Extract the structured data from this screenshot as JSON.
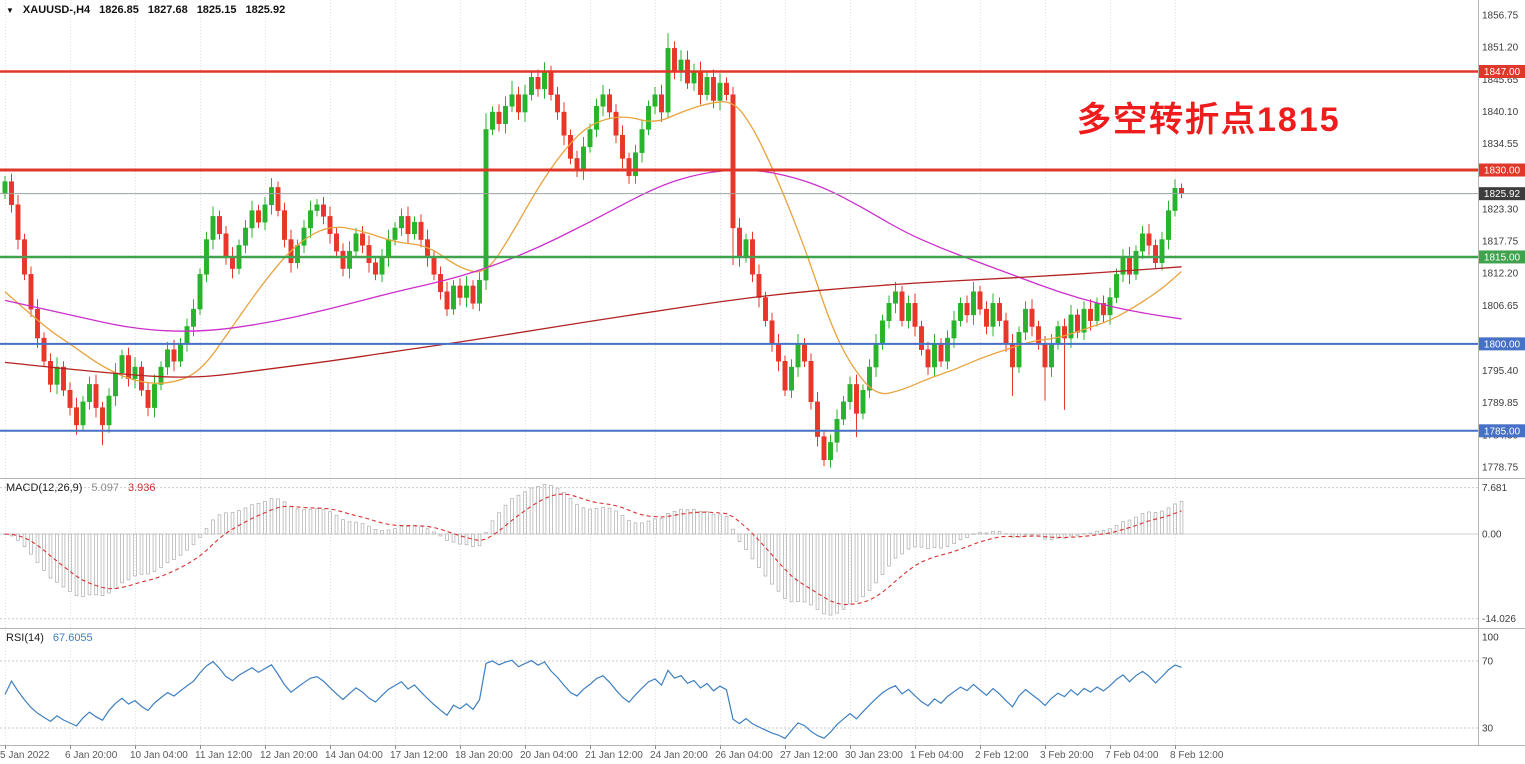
{
  "header": {
    "symbol_period": "XAUUSD-,H4",
    "open": "1826.85",
    "high": "1827.68",
    "low": "1825.15",
    "close": "1825.92"
  },
  "annotation": {
    "text": "多空转折点1815",
    "color": "#ee1c1c"
  },
  "indicators": {
    "macd": {
      "label": "MACD(12,26,9)",
      "value_main": "5.097",
      "value_signal": "3.936",
      "params": [
        12,
        26,
        9
      ],
      "axis": [
        {
          "text": "7.681",
          "value": 7.681
        },
        {
          "text": "0.00",
          "value": 0
        },
        {
          "text": "-14.026",
          "value": -14.026
        }
      ]
    },
    "rsi": {
      "label": "RSI(14)",
      "value": "67.6055",
      "period": 14,
      "axis": [
        {
          "text": "100",
          "value": 100
        },
        {
          "text": "70",
          "value": 70
        },
        {
          "text": "30",
          "value": 30
        }
      ],
      "guide_levels": [
        70,
        30
      ]
    }
  },
  "chart_data": {
    "type": "candlestick",
    "symbol": "XAUUSD-",
    "timeframe": "H4",
    "price_axis_labels": [
      {
        "text": "1856.75",
        "value": 1856.75
      },
      {
        "text": "1851.20",
        "value": 1851.2
      },
      {
        "text": "1845.65",
        "value": 1845.65
      },
      {
        "text": "1840.10",
        "value": 1840.1
      },
      {
        "text": "1834.55",
        "value": 1834.55
      },
      {
        "text": "1823.30",
        "value": 1823.3
      },
      {
        "text": "1817.75",
        "value": 1817.75
      },
      {
        "text": "1812.20",
        "value": 1812.2
      },
      {
        "text": "1806.65",
        "value": 1806.65
      },
      {
        "text": "1795.40",
        "value": 1795.4
      },
      {
        "text": "1789.85",
        "value": 1789.85
      },
      {
        "text": "1784.30",
        "value": 1784.3
      },
      {
        "text": "1778.75",
        "value": 1778.75
      }
    ],
    "levels": [
      {
        "value": 1847.0,
        "label": "1847.00",
        "color": "#e0372b",
        "line_width": 2.5
      },
      {
        "value": 1830.0,
        "label": "1830.00",
        "color": "#e0372b",
        "line_width": 3
      },
      {
        "value": 1815.0,
        "label": "1815.00",
        "color": "#3fa34d",
        "line_width": 2.5
      },
      {
        "value": 1800.0,
        "label": "1800.00",
        "color": "#4671c6",
        "line_width": 2
      },
      {
        "value": 1785.0,
        "label": "1785.00",
        "color": "#4671c6",
        "line_width": 2
      }
    ],
    "current_price": {
      "value": 1825.92,
      "label": "1825.92"
    },
    "time_axis": [
      "5 Jan 2022",
      "6 Jan 20:00",
      "10 Jan 04:00",
      "11 Jan 12:00",
      "12 Jan 20:00",
      "14 Jan 04:00",
      "17 Jan 12:00",
      "18 Jan 20:00",
      "20 Jan 04:00",
      "21 Jan 12:00",
      "24 Jan 20:00",
      "26 Jan 04:00",
      "27 Jan 12:00",
      "30 Jan 23:00",
      "1 Feb 04:00",
      "2 Feb 12:00",
      "3 Feb 20:00",
      "7 Feb 04:00",
      "8 Feb 12:00"
    ],
    "bars_per_time_label": 10,
    "candles": {
      "first_open": 1826,
      "closes": [
        1828,
        1824,
        1818,
        1812,
        1806,
        1801,
        1797,
        1793,
        1796,
        1792,
        1789,
        1786,
        1790,
        1793,
        1789,
        1786,
        1791,
        1795,
        1798,
        1794,
        1796,
        1792,
        1789,
        1793,
        1796,
        1799,
        1797,
        1800,
        1803,
        1806,
        1812,
        1818,
        1822,
        1819,
        1815,
        1813,
        1817,
        1820,
        1823,
        1821,
        1824,
        1827,
        1823,
        1818,
        1814,
        1817,
        1820,
        1823,
        1824,
        1822,
        1819,
        1816,
        1813,
        1816,
        1819,
        1817,
        1814,
        1812,
        1815,
        1818,
        1820,
        1822,
        1819,
        1821,
        1818,
        1815,
        1812,
        1809,
        1806,
        1810,
        1808,
        1810,
        1807,
        1811,
        1837,
        1840,
        1838,
        1841,
        1843,
        1840,
        1843,
        1846,
        1844,
        1847,
        1843,
        1840,
        1836,
        1832,
        1830,
        1834,
        1837,
        1841,
        1843,
        1840,
        1836,
        1832,
        1829,
        1833,
        1837,
        1841,
        1843,
        1840,
        1851,
        1847,
        1849,
        1845,
        1847,
        1843,
        1846,
        1842,
        1845,
        1843,
        1820,
        1815,
        1818,
        1812,
        1808,
        1804,
        1800,
        1797,
        1792,
        1796,
        1800,
        1797,
        1790,
        1784,
        1780,
        1783,
        1787,
        1790,
        1793,
        1788,
        1792,
        1796,
        1800,
        1804,
        1807,
        1809,
        1804,
        1807,
        1803,
        1799,
        1796,
        1800,
        1797,
        1801,
        1804,
        1807,
        1805,
        1809,
        1806,
        1803,
        1807,
        1804,
        1800,
        1796,
        1802,
        1806,
        1803,
        1800,
        1796,
        1800,
        1803,
        1801,
        1805,
        1802,
        1806,
        1804,
        1807,
        1805,
        1808,
        1812,
        1815,
        1812,
        1816,
        1819,
        1817,
        1814,
        1818,
        1823,
        1826.85,
        1825.92
      ],
      "overrides": {
        "15": {
          "l": 1782.5
        },
        "22": {
          "l": 1787.5
        },
        "41": {
          "h": 1828.6
        },
        "68": {
          "l": 1804.8
        },
        "74": {
          "h": 1839.8
        },
        "78": {
          "h": 1845.4
        },
        "83": {
          "h": 1848.6
        },
        "88": {
          "l": 1828.8
        },
        "96": {
          "l": 1827.6
        },
        "102": {
          "h": 1853.6
        },
        "103": {
          "h": 1852.2
        },
        "105": {
          "h": 1850.6
        },
        "112": {
          "l": 1813.6
        },
        "126": {
          "l": 1778.9
        },
        "131": {
          "l": 1783.9
        },
        "155": {
          "l": 1791.0
        },
        "160": {
          "l": 1790.2
        },
        "163": {
          "l": 1788.6
        },
        "180": {
          "h": 1828.4
        },
        "181": {
          "o": 1826.85,
          "h": 1827.68,
          "l": 1825.15,
          "c": 1825.92
        }
      }
    },
    "ma_lines": [
      {
        "name": "ma-fast",
        "color": "#e8a33d",
        "points": [
          [
            0,
            1809
          ],
          [
            6,
            1803
          ],
          [
            10,
            1800
          ],
          [
            15,
            1796
          ],
          [
            20,
            1793.5
          ],
          [
            25,
            1793
          ],
          [
            30,
            1795
          ],
          [
            35,
            1803
          ],
          [
            40,
            1811
          ],
          [
            45,
            1817.5
          ],
          [
            50,
            1820.5
          ],
          [
            55,
            1819.5
          ],
          [
            60,
            1817.5
          ],
          [
            65,
            1817
          ],
          [
            70,
            1813
          ],
          [
            74,
            1812
          ],
          [
            78,
            1819
          ],
          [
            82,
            1827
          ],
          [
            86,
            1833.5
          ],
          [
            90,
            1838
          ],
          [
            95,
            1839.5
          ],
          [
            100,
            1838
          ],
          [
            104,
            1840
          ],
          [
            108,
            1841.5
          ],
          [
            112,
            1842
          ],
          [
            115,
            1837.5
          ],
          [
            118,
            1830.5
          ],
          [
            121,
            1822.5
          ],
          [
            124,
            1813.5
          ],
          [
            127,
            1803.5
          ],
          [
            130,
            1796.5
          ],
          [
            134,
            1791
          ],
          [
            138,
            1792
          ],
          [
            142,
            1794
          ],
          [
            146,
            1795.5
          ],
          [
            150,
            1797.5
          ],
          [
            154,
            1799
          ],
          [
            158,
            1800.5
          ],
          [
            162,
            1801
          ],
          [
            166,
            1802.5
          ],
          [
            170,
            1804
          ],
          [
            174,
            1806.5
          ],
          [
            178,
            1809.5
          ],
          [
            181,
            1812.5
          ]
        ]
      },
      {
        "name": "ma-mid",
        "color": "#cc2fcc",
        "points": [
          [
            0,
            1807.5
          ],
          [
            10,
            1805
          ],
          [
            20,
            1802.5
          ],
          [
            30,
            1802
          ],
          [
            40,
            1803.5
          ],
          [
            50,
            1806
          ],
          [
            60,
            1809
          ],
          [
            70,
            1811.5
          ],
          [
            80,
            1815.5
          ],
          [
            90,
            1821
          ],
          [
            100,
            1827
          ],
          [
            107,
            1829.5
          ],
          [
            114,
            1830.2
          ],
          [
            120,
            1829.2
          ],
          [
            126,
            1827
          ],
          [
            132,
            1823.5
          ],
          [
            138,
            1819.5
          ],
          [
            144,
            1816.5
          ],
          [
            150,
            1814
          ],
          [
            156,
            1811.5
          ],
          [
            162,
            1809
          ],
          [
            168,
            1807
          ],
          [
            174,
            1805.5
          ],
          [
            181,
            1804.3
          ]
        ]
      },
      {
        "name": "ma-slow",
        "color": "#b22222",
        "points": [
          [
            0,
            1796.8
          ],
          [
            10,
            1795.6
          ],
          [
            20,
            1794.6
          ],
          [
            26,
            1794.2
          ],
          [
            32,
            1794.4
          ],
          [
            40,
            1795.6
          ],
          [
            50,
            1797
          ],
          [
            60,
            1798.7
          ],
          [
            70,
            1800.3
          ],
          [
            80,
            1802.1
          ],
          [
            90,
            1803.9
          ],
          [
            100,
            1805.6
          ],
          [
            110,
            1807.3
          ],
          [
            120,
            1808.7
          ],
          [
            130,
            1809.7
          ],
          [
            140,
            1810.5
          ],
          [
            150,
            1811.1
          ],
          [
            160,
            1811.7
          ],
          [
            170,
            1812.4
          ],
          [
            181,
            1813.3
          ]
        ]
      }
    ]
  },
  "colors": {
    "up": "#29b32c",
    "down": "#e8362a",
    "grid": "#e2e2e2",
    "separator": "#b4b4b4",
    "histogram": "#b5b5b5",
    "macd_signal": "#d93030",
    "rsi_line": "#3e7fc1",
    "axis_text": "#3c3c3c",
    "time_text": "#5a5a5a",
    "current_line": "#9aa3a3",
    "current_badge": "#3d3d3d",
    "badge_text": "#ffffff"
  }
}
